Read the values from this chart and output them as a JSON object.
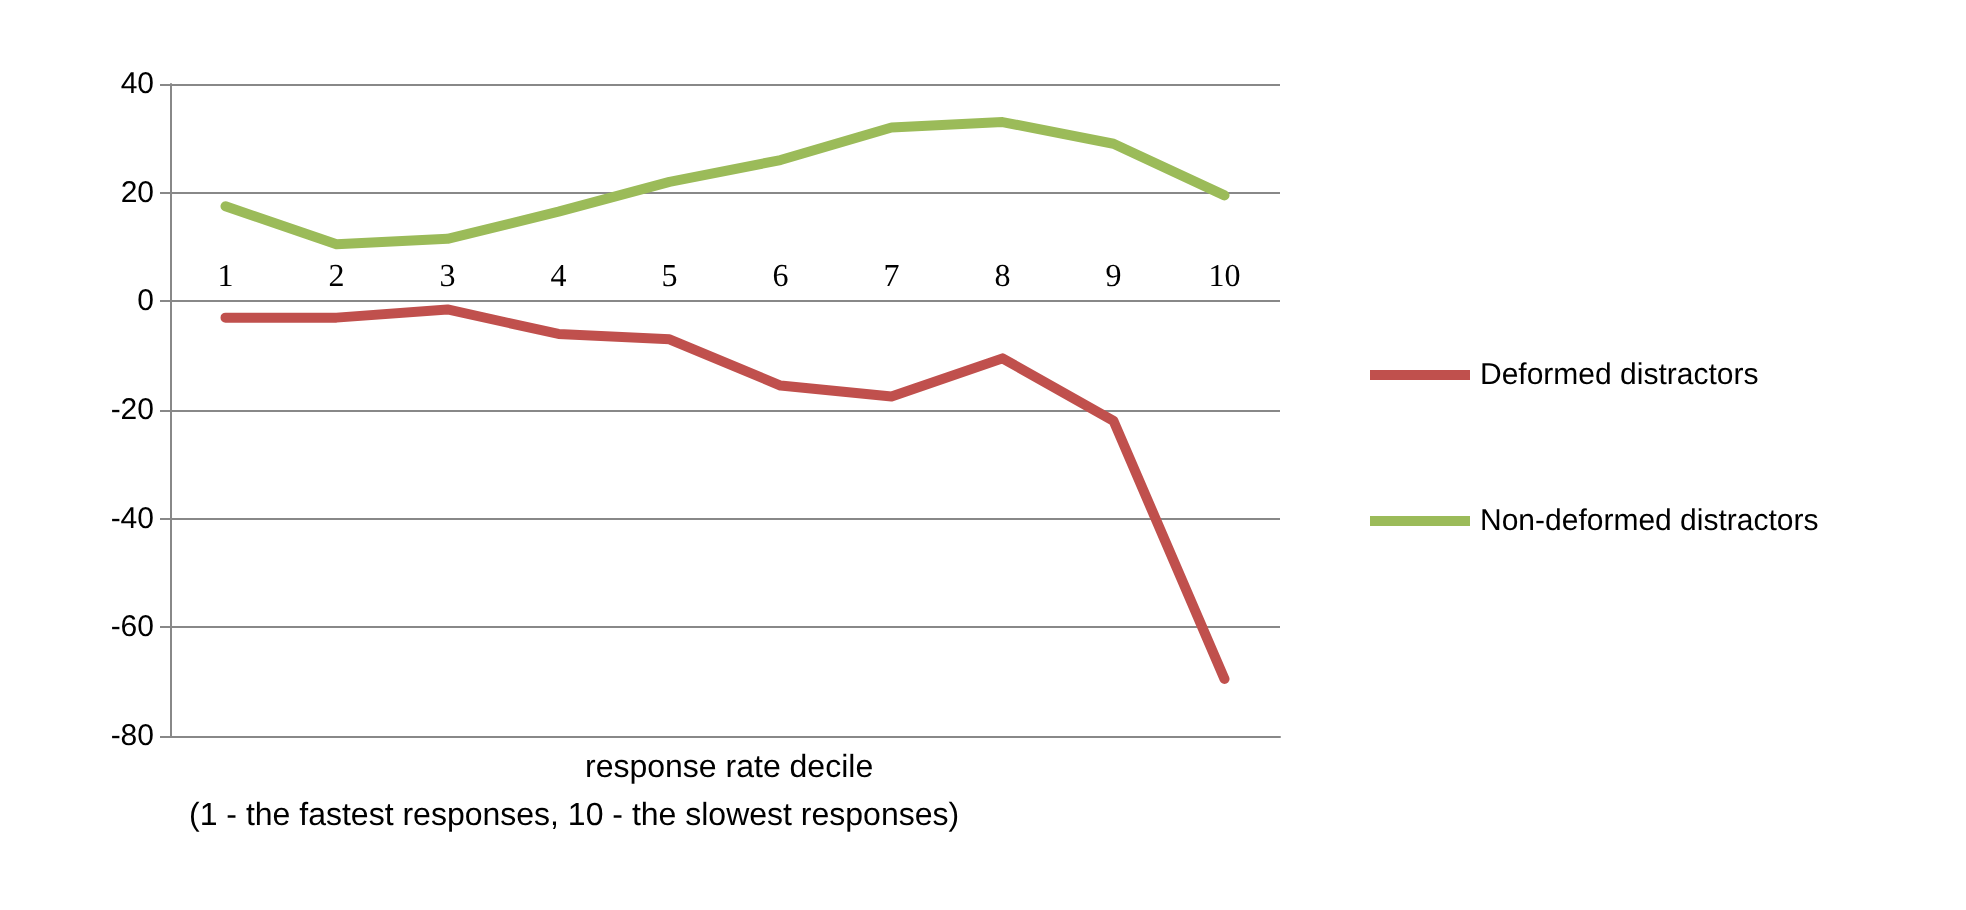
{
  "chart_data": {
    "type": "line",
    "xlabel": "response rate decile\n(1 - the fastest responses, 10 - the slowest responses)",
    "categories": [
      "1",
      "2",
      "3",
      "4",
      "5",
      "6",
      "7",
      "8",
      "9",
      "10"
    ],
    "series": [
      {
        "name": "Deformed distractors",
        "color": "#c0504d",
        "values": [
          -3,
          -3,
          -1.5,
          -6,
          -7,
          -15.5,
          -17.5,
          -10.5,
          -22,
          -69.5
        ]
      },
      {
        "name": "Non-deformed distractors",
        "color": "#9bbb59",
        "values": [
          17.5,
          10.5,
          11.5,
          16.5,
          22,
          26,
          32,
          33,
          29,
          19.5
        ]
      }
    ],
    "ylim": [
      -80,
      40
    ],
    "yticks": [
      -80,
      -60,
      -40,
      -20,
      0,
      20,
      40
    ],
    "grid": "y",
    "legend": "right",
    "marker": "none",
    "line_style": "solid"
  }
}
